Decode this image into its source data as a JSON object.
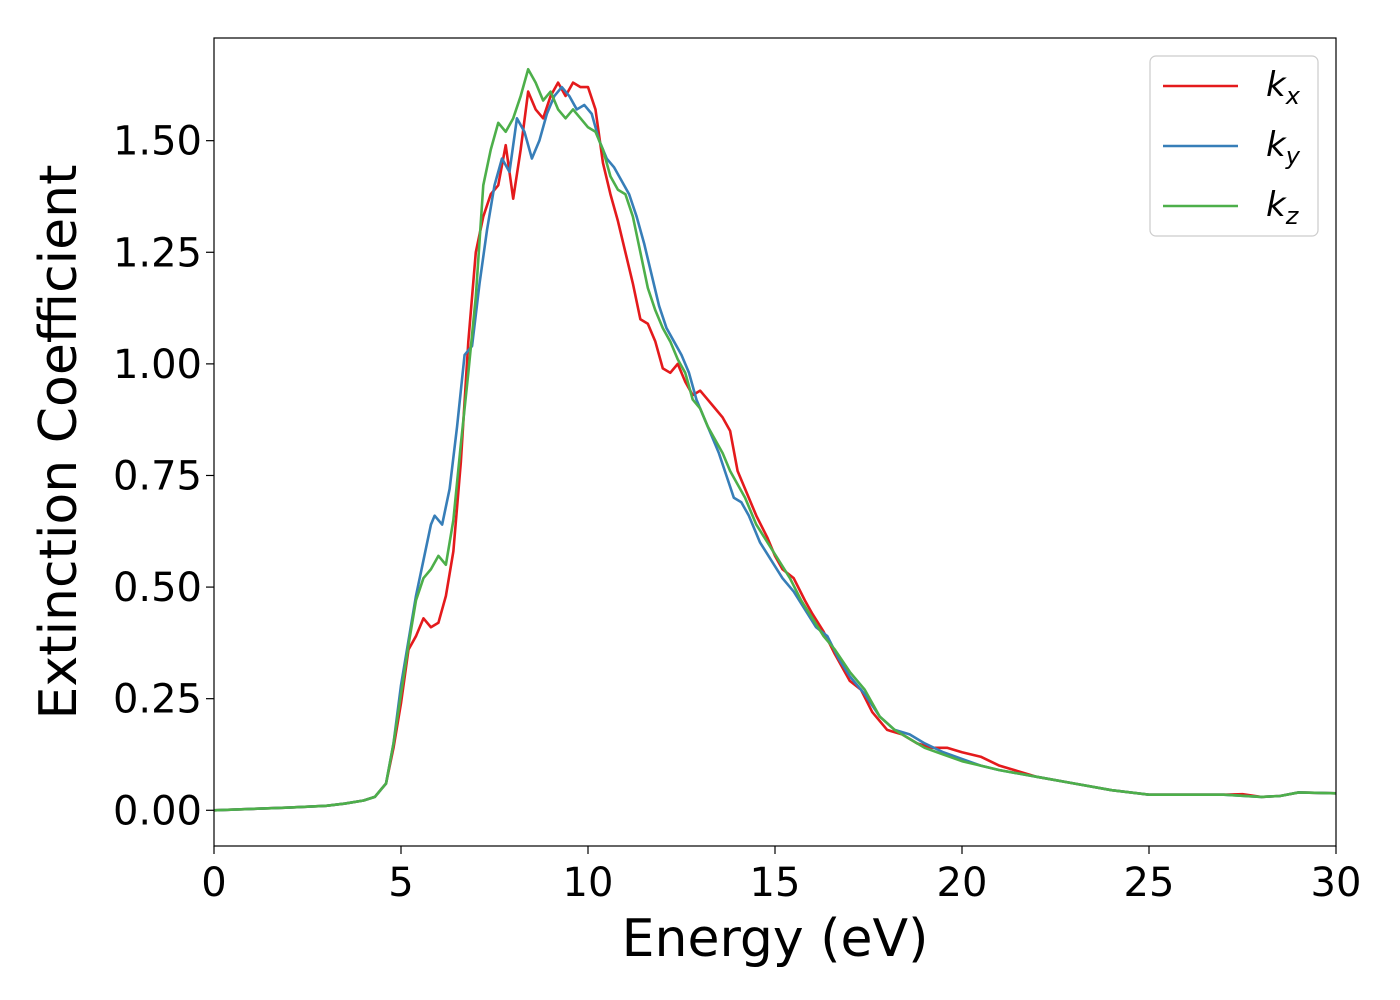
{
  "chart_data": {
    "type": "line",
    "title": "",
    "xlabel": "Energy (eV)",
    "ylabel": "Extinction Coefficient",
    "xlim": [
      0,
      30
    ],
    "ylim": [
      -0.08,
      1.73
    ],
    "xticks": [
      0,
      5,
      10,
      15,
      20,
      25,
      30
    ],
    "xtick_labels": [
      "0",
      "5",
      "10",
      "15",
      "20",
      "25",
      "30"
    ],
    "yticks": [
      0,
      0.25,
      0.5,
      0.75,
      1.0,
      1.25,
      1.5
    ],
    "ytick_labels": [
      "0.00",
      "0.25",
      "0.50",
      "0.75",
      "1.00",
      "1.25",
      "1.50"
    ],
    "grid": false,
    "legend_position": "top-right",
    "series": [
      {
        "name": "k_x",
        "label_base": "k",
        "label_sub": "x",
        "color": "#e41a1c",
        "x": [
          0,
          1,
          2,
          3,
          3.5,
          4,
          4.3,
          4.6,
          4.8,
          5.0,
          5.2,
          5.4,
          5.6,
          5.8,
          6.0,
          6.2,
          6.4,
          6.6,
          6.8,
          7.0,
          7.2,
          7.4,
          7.6,
          7.8,
          8.0,
          8.2,
          8.4,
          8.6,
          8.8,
          9.0,
          9.2,
          9.4,
          9.6,
          9.8,
          10.0,
          10.2,
          10.4,
          10.6,
          10.8,
          11.0,
          11.2,
          11.4,
          11.6,
          11.8,
          12.0,
          12.2,
          12.4,
          12.6,
          12.8,
          13.0,
          13.2,
          13.4,
          13.6,
          13.8,
          14.0,
          14.2,
          14.5,
          14.8,
          15.0,
          15.2,
          15.5,
          15.8,
          16.0,
          16.3,
          16.6,
          17.0,
          17.3,
          17.6,
          18.0,
          18.4,
          18.8,
          19.2,
          19.6,
          20.0,
          20.5,
          21.0,
          22.0,
          23.0,
          24.0,
          25.0,
          26.0,
          27.0,
          27.5,
          28.0,
          28.5,
          29.0,
          30.0
        ],
        "y": [
          0.0,
          0.003,
          0.006,
          0.01,
          0.015,
          0.022,
          0.03,
          0.06,
          0.14,
          0.24,
          0.36,
          0.39,
          0.43,
          0.41,
          0.42,
          0.48,
          0.58,
          0.78,
          1.05,
          1.25,
          1.33,
          1.38,
          1.4,
          1.49,
          1.37,
          1.48,
          1.61,
          1.57,
          1.55,
          1.6,
          1.63,
          1.6,
          1.63,
          1.62,
          1.62,
          1.57,
          1.45,
          1.38,
          1.32,
          1.25,
          1.18,
          1.1,
          1.09,
          1.05,
          0.99,
          0.98,
          1.0,
          0.96,
          0.93,
          0.94,
          0.92,
          0.9,
          0.88,
          0.85,
          0.76,
          0.72,
          0.66,
          0.61,
          0.57,
          0.54,
          0.52,
          0.47,
          0.44,
          0.4,
          0.35,
          0.29,
          0.27,
          0.22,
          0.18,
          0.17,
          0.15,
          0.14,
          0.14,
          0.13,
          0.12,
          0.1,
          0.075,
          0.06,
          0.045,
          0.035,
          0.035,
          0.035,
          0.036,
          0.03,
          0.032,
          0.04,
          0.038
        ]
      },
      {
        "name": "k_y",
        "label_base": "k",
        "label_sub": "y",
        "color": "#377eb8",
        "x": [
          0,
          1,
          2,
          3,
          3.5,
          4,
          4.3,
          4.6,
          4.8,
          5.0,
          5.2,
          5.4,
          5.6,
          5.8,
          5.9,
          6.1,
          6.3,
          6.5,
          6.7,
          6.9,
          7.1,
          7.3,
          7.5,
          7.7,
          7.9,
          8.1,
          8.3,
          8.5,
          8.7,
          8.9,
          9.1,
          9.3,
          9.5,
          9.7,
          9.9,
          10.1,
          10.3,
          10.5,
          10.7,
          10.9,
          11.1,
          11.3,
          11.5,
          11.7,
          11.9,
          12.1,
          12.3,
          12.5,
          12.7,
          12.9,
          13.1,
          13.3,
          13.5,
          13.7,
          13.9,
          14.1,
          14.3,
          14.6,
          14.9,
          15.2,
          15.5,
          15.8,
          16.1,
          16.4,
          16.7,
          17.0,
          17.4,
          17.8,
          18.2,
          18.6,
          19.0,
          19.5,
          20.0,
          20.5,
          21.0,
          22.0,
          23.0,
          24.0,
          25.0,
          26.0,
          27.0,
          28.0,
          28.5,
          29.0,
          30.0
        ],
        "y": [
          0.0,
          0.003,
          0.006,
          0.01,
          0.015,
          0.022,
          0.03,
          0.06,
          0.15,
          0.28,
          0.38,
          0.48,
          0.56,
          0.64,
          0.66,
          0.64,
          0.72,
          0.86,
          1.02,
          1.04,
          1.18,
          1.3,
          1.4,
          1.46,
          1.43,
          1.55,
          1.52,
          1.46,
          1.5,
          1.56,
          1.6,
          1.62,
          1.6,
          1.57,
          1.58,
          1.56,
          1.5,
          1.46,
          1.44,
          1.41,
          1.38,
          1.33,
          1.27,
          1.2,
          1.13,
          1.08,
          1.05,
          1.02,
          0.98,
          0.92,
          0.88,
          0.84,
          0.8,
          0.75,
          0.7,
          0.69,
          0.66,
          0.6,
          0.56,
          0.52,
          0.49,
          0.45,
          0.41,
          0.39,
          0.34,
          0.3,
          0.26,
          0.21,
          0.18,
          0.17,
          0.15,
          0.13,
          0.115,
          0.1,
          0.09,
          0.075,
          0.06,
          0.045,
          0.035,
          0.035,
          0.035,
          0.03,
          0.032,
          0.04,
          0.038
        ]
      },
      {
        "name": "k_z",
        "label_base": "k",
        "label_sub": "z",
        "color": "#4daf4a",
        "x": [
          0,
          1,
          2,
          3,
          3.5,
          4,
          4.3,
          4.6,
          4.8,
          5.0,
          5.2,
          5.4,
          5.6,
          5.8,
          6.0,
          6.2,
          6.4,
          6.6,
          6.8,
          7.0,
          7.2,
          7.4,
          7.6,
          7.8,
          8.0,
          8.2,
          8.4,
          8.6,
          8.8,
          9.0,
          9.2,
          9.4,
          9.6,
          9.8,
          10.0,
          10.2,
          10.4,
          10.6,
          10.8,
          11.0,
          11.2,
          11.4,
          11.6,
          11.8,
          12.0,
          12.2,
          12.4,
          12.6,
          12.8,
          13.0,
          13.2,
          13.4,
          13.6,
          13.8,
          14.0,
          14.2,
          14.5,
          14.8,
          15.1,
          15.4,
          15.7,
          16.0,
          16.3,
          16.6,
          17.0,
          17.4,
          17.8,
          18.2,
          18.6,
          19.0,
          19.5,
          20.0,
          20.5,
          21.0,
          22.0,
          23.0,
          24.0,
          25.0,
          26.0,
          27.0,
          28.0,
          28.5,
          29.0,
          30.0
        ],
        "y": [
          0.0,
          0.003,
          0.006,
          0.01,
          0.015,
          0.022,
          0.03,
          0.06,
          0.15,
          0.26,
          0.37,
          0.47,
          0.52,
          0.54,
          0.57,
          0.55,
          0.65,
          0.82,
          0.98,
          1.15,
          1.4,
          1.48,
          1.54,
          1.52,
          1.55,
          1.6,
          1.66,
          1.63,
          1.59,
          1.61,
          1.57,
          1.55,
          1.57,
          1.55,
          1.53,
          1.52,
          1.48,
          1.42,
          1.39,
          1.38,
          1.33,
          1.25,
          1.17,
          1.12,
          1.08,
          1.05,
          1.01,
          0.98,
          0.92,
          0.9,
          0.86,
          0.83,
          0.8,
          0.76,
          0.73,
          0.7,
          0.64,
          0.6,
          0.56,
          0.52,
          0.47,
          0.43,
          0.39,
          0.36,
          0.31,
          0.27,
          0.21,
          0.18,
          0.16,
          0.14,
          0.125,
          0.11,
          0.1,
          0.09,
          0.075,
          0.06,
          0.045,
          0.035,
          0.035,
          0.035,
          0.03,
          0.032,
          0.04,
          0.038
        ]
      }
    ]
  }
}
